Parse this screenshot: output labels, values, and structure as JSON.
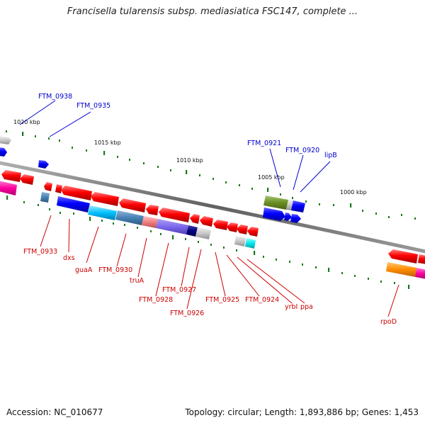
{
  "title": "Francisella tularensis subsp. mediasiatica FSC147, complete ...",
  "footer": {
    "accession": "Accession: NC_010677",
    "stats": "Topology: circular; Length: 1,893,886 bp; Genes: 1,453"
  },
  "ticks": [
    "1020 kbp",
    "1015 kbp",
    "1010 kbp",
    "1005 kbp",
    "1000 kbp"
  ],
  "genes_top": [
    "FTM_0938",
    "FTM_0935",
    "FTM_0921",
    "FTM_0920",
    "lipB"
  ],
  "genes_bottom": [
    "FTM_0933",
    "dxs",
    "guaA",
    "FTM_0930",
    "truA",
    "FTM_0928",
    "FTM_0927",
    "FTM_0926",
    "FTM_0925",
    "FTM_0924",
    "yrbI",
    "ppa",
    "rpoD"
  ],
  "colors": {
    "top_label": "#0000cc",
    "bottom_label": "#cc0000",
    "backbone": "#808080",
    "tick": "#1a7a1a"
  }
}
